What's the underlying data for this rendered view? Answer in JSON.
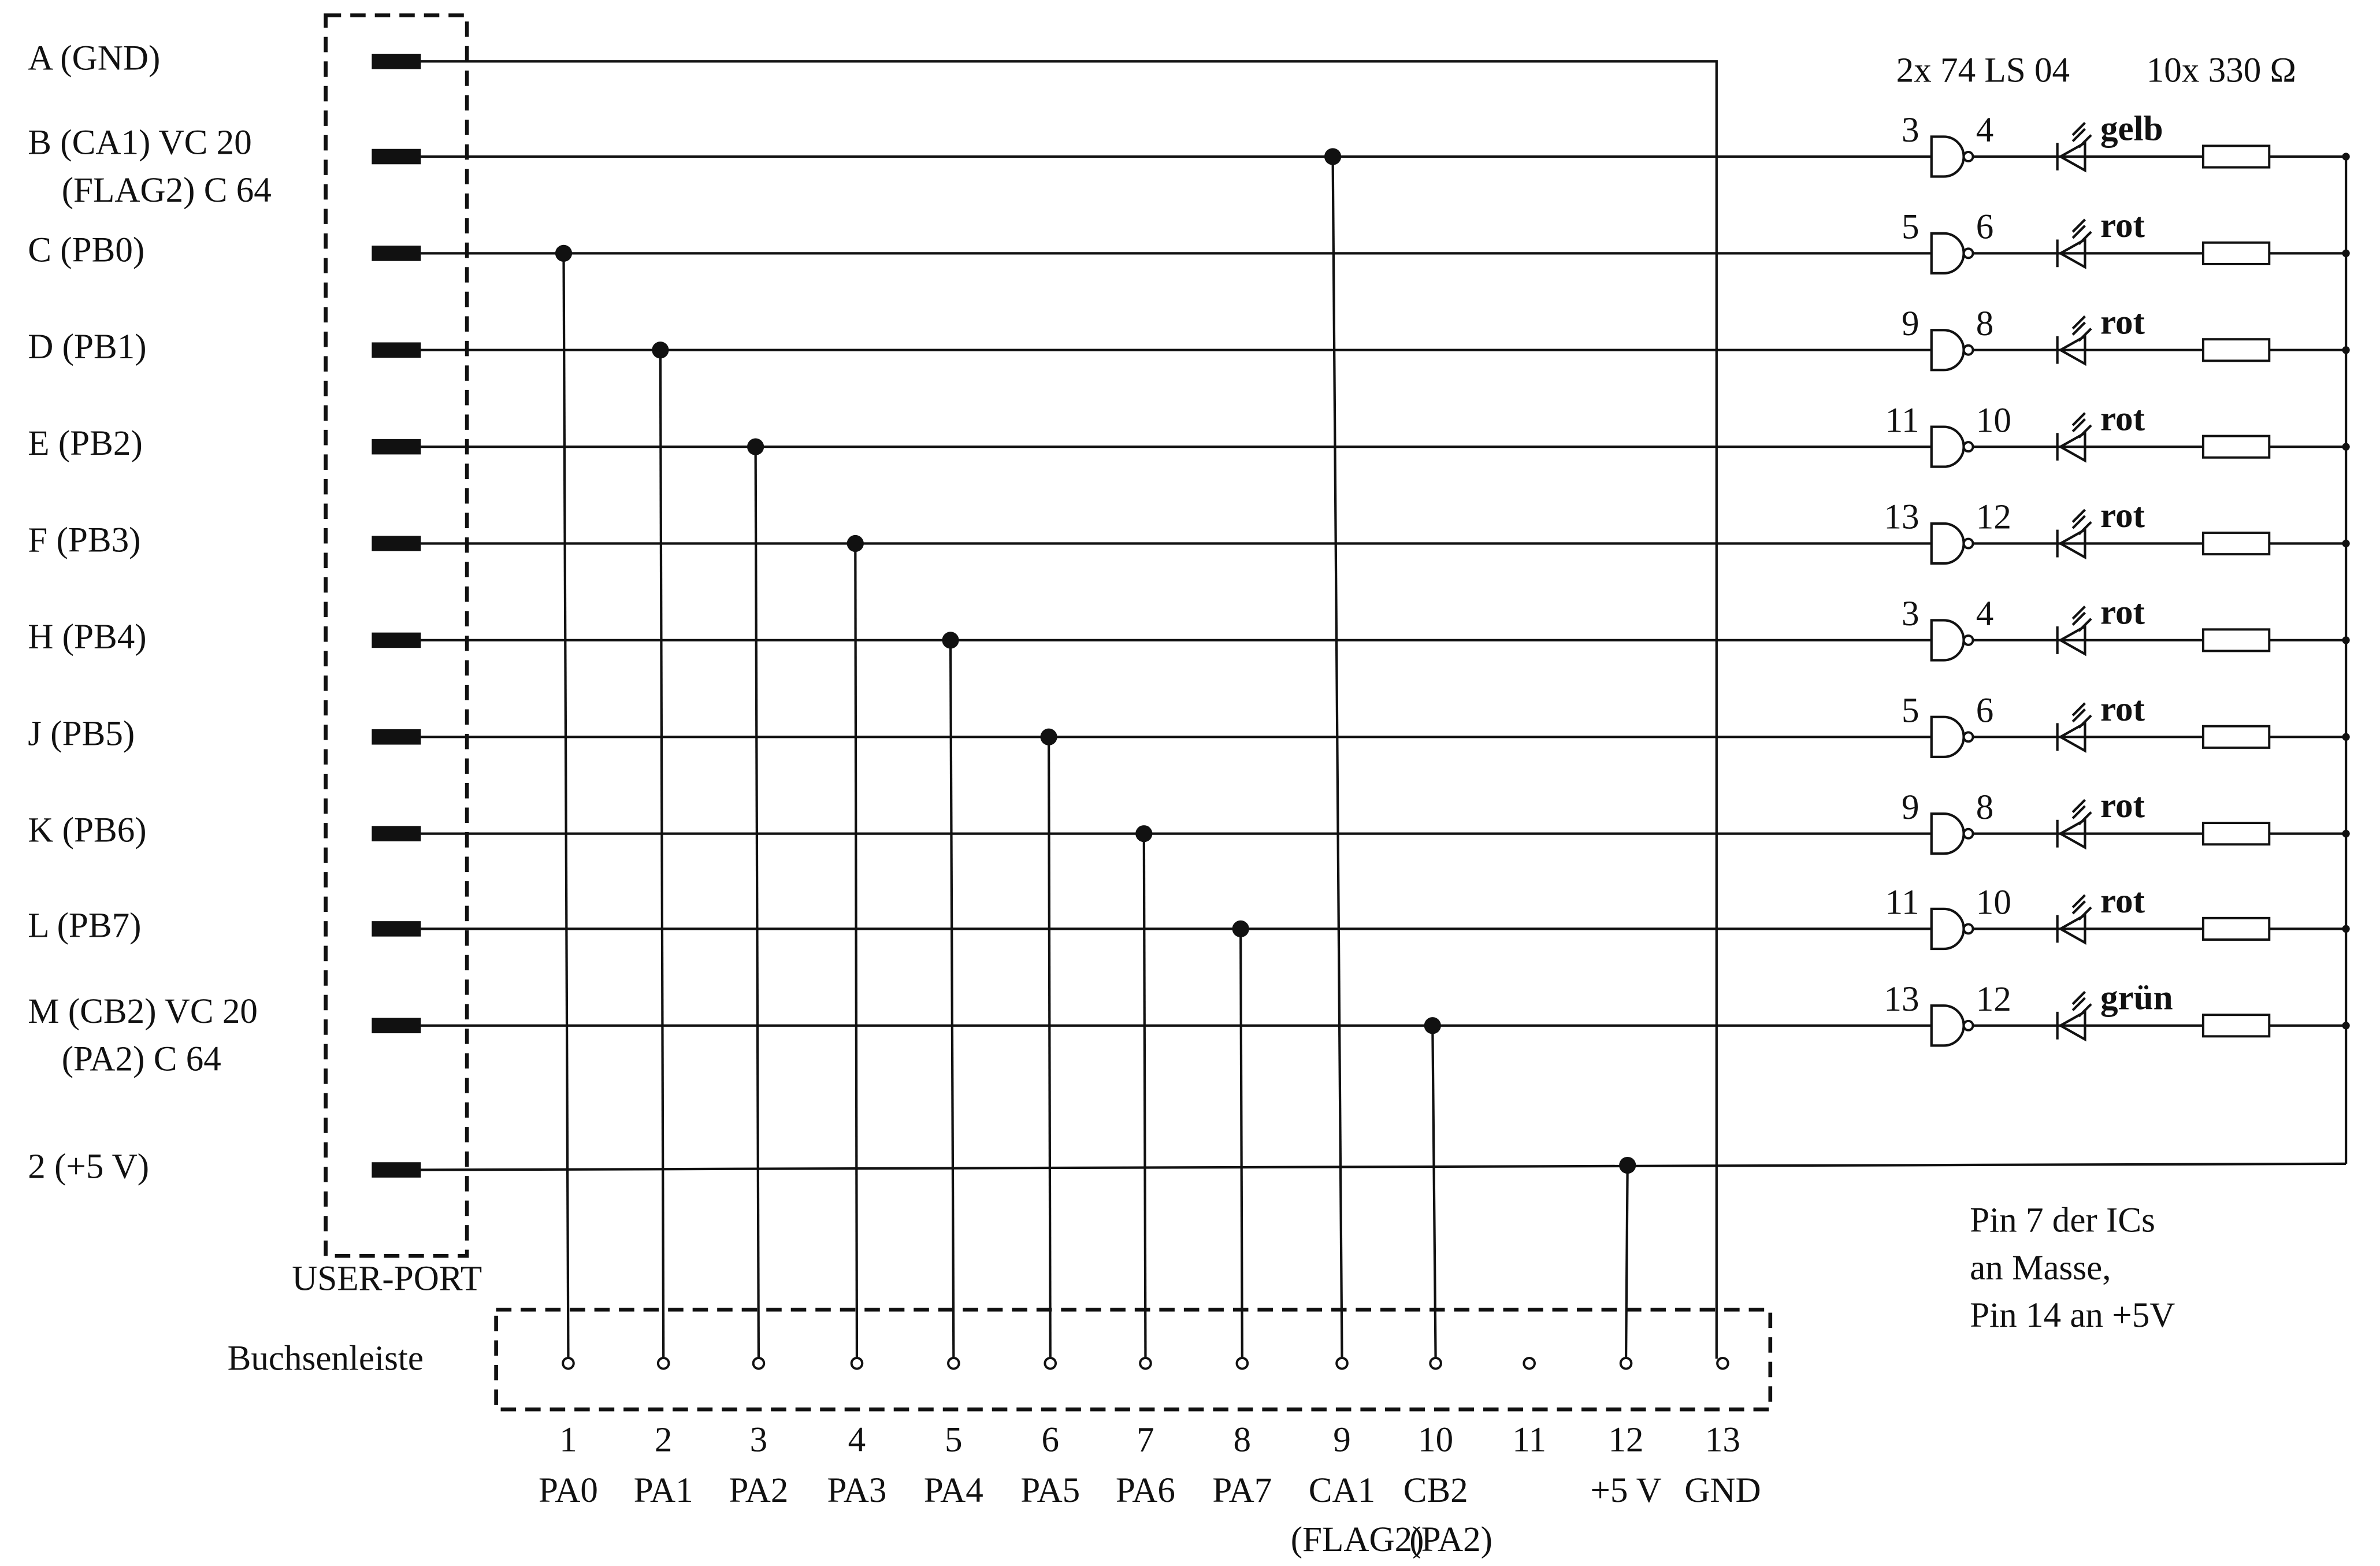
{
  "user_port": {
    "title": "USER-PORT",
    "pins": [
      {
        "label": [
          "A (GND)"
        ]
      },
      {
        "label": [
          "B (CA1) VC 20",
          "(FLAG2) C 64"
        ]
      },
      {
        "label": [
          "C (PB0)"
        ]
      },
      {
        "label": [
          "D (PB1)"
        ]
      },
      {
        "label": [
          "E (PB2)"
        ]
      },
      {
        "label": [
          "F (PB3)"
        ]
      },
      {
        "label": [
          "H (PB4)"
        ]
      },
      {
        "label": [
          "J (PB5)"
        ]
      },
      {
        "label": [
          "K (PB6)"
        ]
      },
      {
        "label": [
          "L (PB7)"
        ]
      },
      {
        "label": [
          "M (CB2) VC 20",
          "(PA2) C 64"
        ]
      },
      {
        "label": [
          "2 (+5 V)"
        ]
      }
    ]
  },
  "connector": {
    "title": "Buchsenleiste",
    "pins": [
      {
        "number": "1",
        "label": [
          "PA0"
        ]
      },
      {
        "number": "2",
        "label": [
          "PA1"
        ]
      },
      {
        "number": "3",
        "label": [
          "PA2"
        ]
      },
      {
        "number": "4",
        "label": [
          "PA3"
        ]
      },
      {
        "number": "5",
        "label": [
          "PA4"
        ]
      },
      {
        "number": "6",
        "label": [
          "PA5"
        ]
      },
      {
        "number": "7",
        "label": [
          "PA6"
        ]
      },
      {
        "number": "8",
        "label": [
          "PA7"
        ]
      },
      {
        "number": "9",
        "label": [
          "CA1",
          "(FLAG2)"
        ]
      },
      {
        "number": "10",
        "label": [
          "CB2",
          "(PA2)"
        ]
      },
      {
        "number": "11"
      },
      {
        "number": "12",
        "label": [
          "+5 V"
        ]
      },
      {
        "number": "13",
        "label": [
          "GND"
        ]
      }
    ]
  },
  "ics": "2x 74 LS 04",
  "resistors": "10x 330 Ω",
  "channels": [
    {
      "in": "3",
      "out": "4",
      "led": "gelb"
    },
    {
      "in": "5",
      "out": "6",
      "led": "rot"
    },
    {
      "in": "9",
      "out": "8",
      "led": "rot"
    },
    {
      "in": "11",
      "out": "10",
      "led": "rot"
    },
    {
      "in": "13",
      "out": "12",
      "led": "rot"
    },
    {
      "in": "3",
      "out": "4",
      "led": "rot"
    },
    {
      "in": "5",
      "out": "6",
      "led": "rot"
    },
    {
      "in": "9",
      "out": "8",
      "led": "rot"
    },
    {
      "in": "11",
      "out": "10",
      "led": "rot"
    },
    {
      "in": "13",
      "out": "12",
      "led": "grün"
    }
  ],
  "note": [
    "Pin 7 der ICs",
    "an Masse,",
    "Pin 14 an +5V"
  ]
}
